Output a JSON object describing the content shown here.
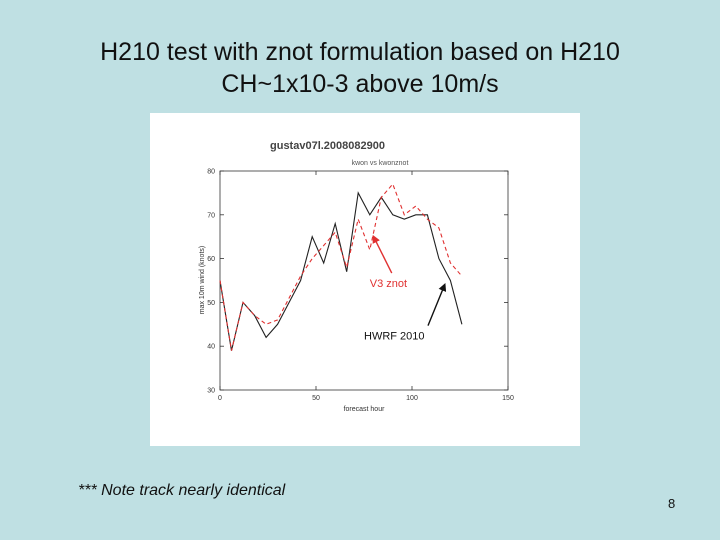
{
  "slide": {
    "title_line1": "H210 test with znot formulation based on H210",
    "title_line2": "CH~1x10-3 above 10m/s",
    "note": "*** Note track nearly identical",
    "page_number": "8"
  },
  "chart_data": {
    "type": "line",
    "title": "gustav07l.2008082900",
    "subtitle": "kwon vs kwonznot",
    "xlabel": "forecast hour",
    "ylabel": "max 10m wind (knots)",
    "xlim": [
      0,
      150
    ],
    "ylim": [
      30,
      80
    ],
    "xticks": [
      0,
      50,
      100,
      150
    ],
    "yticks": [
      30,
      40,
      50,
      60,
      70,
      80
    ],
    "grid": false,
    "series": [
      {
        "name": "HWRF 2010",
        "color": "#222222",
        "style": "solid",
        "x": [
          0,
          6,
          12,
          18,
          24,
          30,
          36,
          42,
          48,
          54,
          60,
          66,
          72,
          78,
          84,
          90,
          96,
          102,
          108,
          114,
          120,
          126
        ],
        "values": [
          55,
          39,
          50,
          47,
          42,
          45,
          50,
          55,
          65,
          59,
          68,
          57,
          75,
          70,
          74,
          70,
          69,
          70,
          70,
          60,
          55,
          45
        ]
      },
      {
        "name": "V3 znot",
        "color": "#e03030",
        "style": "dashed",
        "x": [
          0,
          6,
          12,
          18,
          24,
          30,
          36,
          42,
          48,
          54,
          60,
          66,
          72,
          78,
          84,
          90,
          96,
          102,
          108,
          114,
          120,
          126
        ],
        "values": [
          55,
          39,
          50,
          47,
          45,
          46,
          51,
          56,
          60,
          63,
          66,
          58,
          69,
          62,
          74,
          77,
          70,
          72,
          69,
          67,
          59,
          56
        ]
      }
    ],
    "annotations": [
      {
        "text": "V3 znot",
        "x": 78,
        "y": 53.5,
        "color": "#e03030",
        "arrow_to": [
          80,
          65
        ]
      },
      {
        "text": "HWRF 2010",
        "x": 75,
        "y": 41.5,
        "color": "#111111",
        "arrow_to": [
          117,
          54
        ]
      }
    ]
  }
}
